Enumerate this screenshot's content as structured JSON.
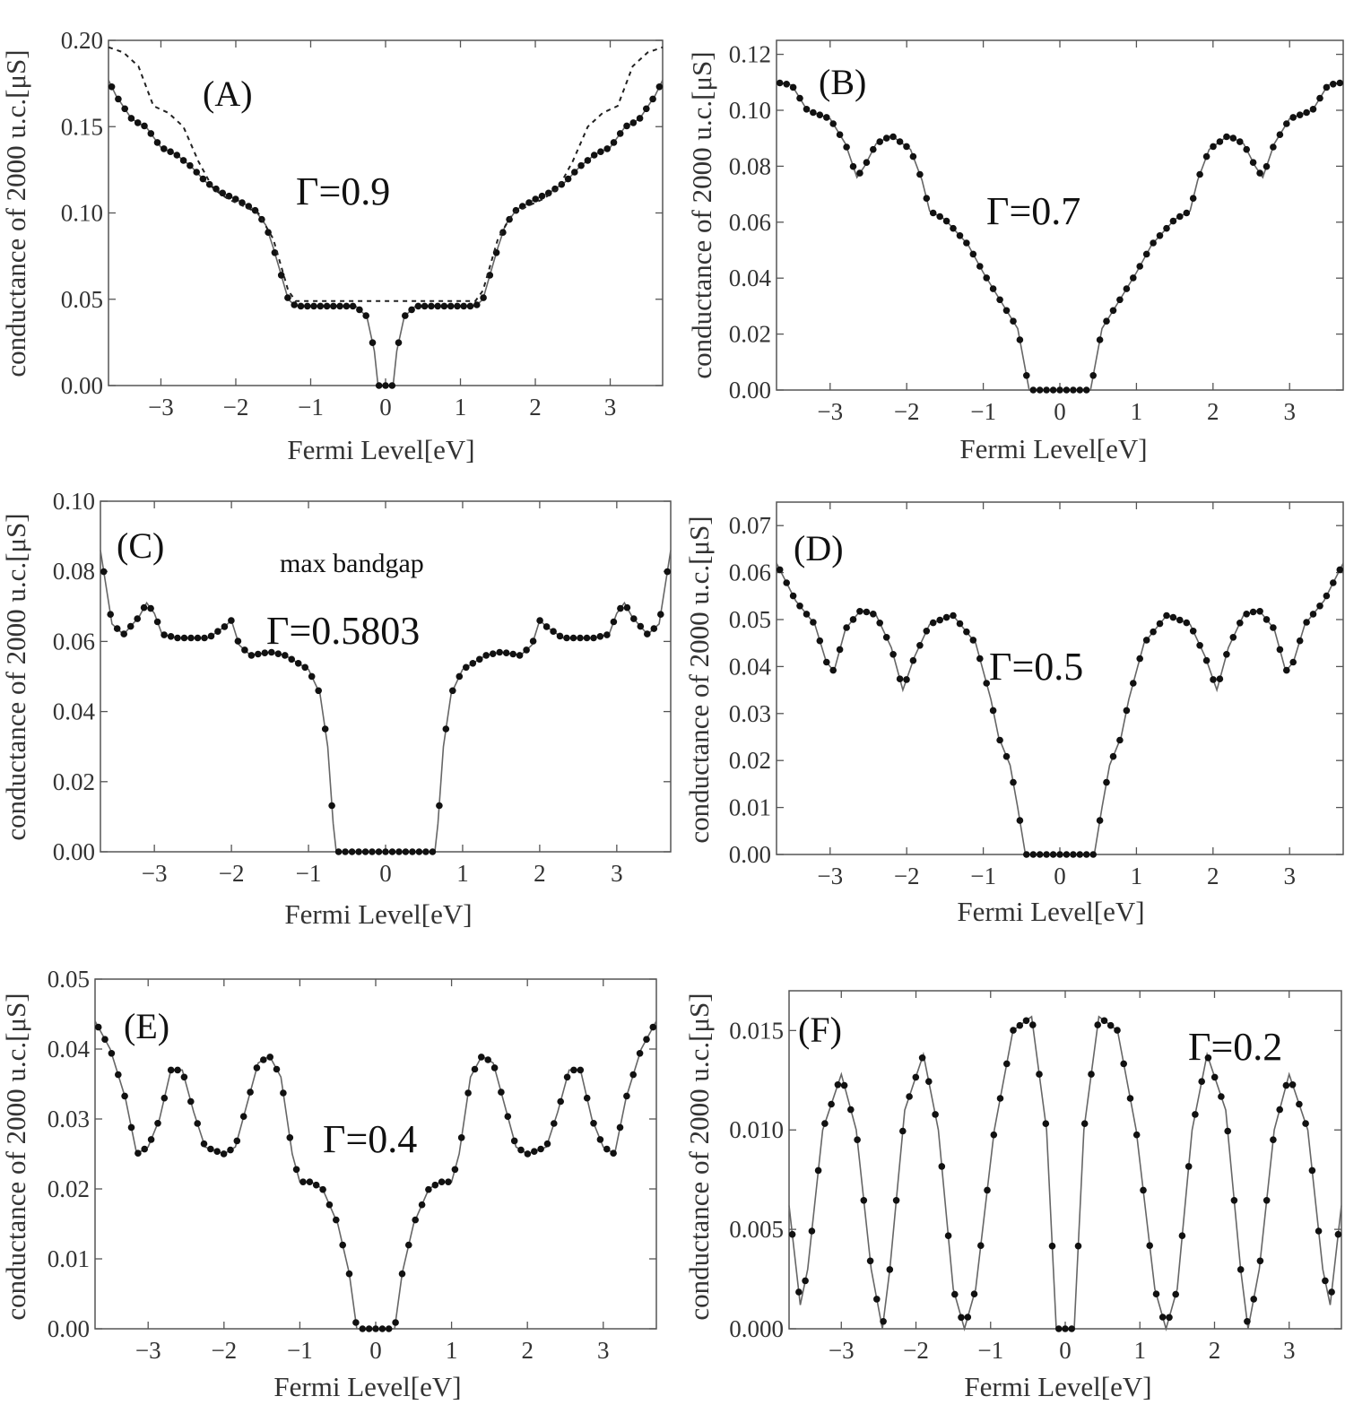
{
  "figure": {
    "x_axis_label": "Fermi Level[eV]",
    "y_axis_label": "conductance of 2000 u.c.[μS]"
  },
  "chart_data": [
    {
      "type": "scatter",
      "panel_label": "(A)",
      "annotations": [
        "Γ=0.9"
      ],
      "xlabel": "Fermi Level[eV]",
      "ylabel": "conductance of 2000 u.c.[μS]",
      "xlim": [
        -3.7,
        3.7
      ],
      "ylim": [
        0,
        0.2
      ],
      "xticks": [
        "−3",
        "−2",
        "−1",
        "0",
        "1",
        "2",
        "3"
      ],
      "yticks": [
        "0.00",
        "0.05",
        "0.10",
        "0.15",
        "0.20"
      ],
      "series": [
        {
          "style": "solid-line-with-dots",
          "x": [
            0,
            0.1,
            0.15,
            0.25,
            0.4,
            1.2,
            1.3,
            1.4,
            1.5,
            1.6,
            1.75,
            2.0,
            2.2,
            2.4,
            2.6,
            2.8,
            3.0,
            3.1,
            3.2,
            3.3,
            3.4,
            3.6,
            3.7
          ],
          "y": [
            0.0,
            0.0,
            0.02,
            0.04,
            0.046,
            0.046,
            0.05,
            0.065,
            0.08,
            0.093,
            0.102,
            0.108,
            0.112,
            0.118,
            0.127,
            0.134,
            0.138,
            0.144,
            0.15,
            0.152,
            0.155,
            0.168,
            0.177
          ]
        },
        {
          "style": "dashed",
          "x": [
            0,
            1.2,
            1.3,
            1.5,
            1.7,
            2.1,
            2.3,
            2.5,
            2.7,
            2.9,
            3.1,
            3.3,
            3.5,
            3.7
          ],
          "y": [
            0.049,
            0.049,
            0.055,
            0.085,
            0.1,
            0.108,
            0.114,
            0.13,
            0.15,
            0.158,
            0.162,
            0.185,
            0.193,
            0.196
          ]
        }
      ]
    },
    {
      "type": "scatter",
      "panel_label": "(B)",
      "annotations": [
        "Γ=0.7"
      ],
      "xlabel": "Fermi Level[eV]",
      "ylabel": "conductance of 2000 u.c.[μS]",
      "xlim": [
        -3.7,
        3.7
      ],
      "ylim": [
        0,
        0.125
      ],
      "xticks": [
        "−3",
        "−2",
        "−1",
        "0",
        "1",
        "2",
        "3"
      ],
      "yticks": [
        "0.00",
        "0.02",
        "0.04",
        "0.06",
        "0.08",
        "0.10",
        "0.12"
      ],
      "series": [
        {
          "style": "solid-line-with-dots",
          "x": [
            0,
            0.4,
            0.55,
            0.8,
            1.0,
            1.2,
            1.5,
            1.7,
            1.8,
            1.95,
            2.2,
            2.4,
            2.55,
            2.65,
            2.8,
            3.0,
            3.3,
            3.5,
            3.7
          ],
          "y": [
            0.0,
            0.0,
            0.022,
            0.033,
            0.042,
            0.052,
            0.061,
            0.064,
            0.075,
            0.086,
            0.091,
            0.088,
            0.08,
            0.076,
            0.088,
            0.097,
            0.1,
            0.109,
            0.11
          ]
        }
      ]
    },
    {
      "type": "scatter",
      "panel_label": "(C)",
      "annotations": [
        "max bandgap",
        "Γ=0.5803"
      ],
      "xlabel": "Fermi Level[eV]",
      "ylabel": "conductance of 2000 u.c.[μS]",
      "xlim": [
        -3.7,
        3.7
      ],
      "ylim": [
        0,
        0.1
      ],
      "xticks": [
        "−3",
        "−2",
        "−1",
        "0",
        "1",
        "2",
        "3"
      ],
      "yticks": [
        "0.00",
        "0.02",
        "0.04",
        "0.06",
        "0.08",
        "0.10"
      ],
      "series": [
        {
          "style": "solid-line-with-dots",
          "x": [
            0,
            0.64,
            0.68,
            0.75,
            0.85,
            1.0,
            1.3,
            1.5,
            1.75,
            1.9,
            2.0,
            2.1,
            2.3,
            2.7,
            2.9,
            3.0,
            3.1,
            3.2,
            3.4,
            3.55,
            3.7
          ],
          "y": [
            0.0,
            0.0,
            0.008,
            0.03,
            0.045,
            0.052,
            0.056,
            0.057,
            0.056,
            0.059,
            0.066,
            0.064,
            0.061,
            0.061,
            0.062,
            0.068,
            0.071,
            0.067,
            0.062,
            0.065,
            0.086
          ]
        }
      ]
    },
    {
      "type": "scatter",
      "panel_label": "(D)",
      "annotations": [
        "Γ=0.5"
      ],
      "xlabel": "Fermi Level[eV]",
      "ylabel": "conductance of 2000 u.c.[μS]",
      "xlim": [
        -3.7,
        3.7
      ],
      "ylim": [
        0,
        0.075
      ],
      "xticks": [
        "−3",
        "−2",
        "−1",
        "0",
        "1",
        "2",
        "3"
      ],
      "yticks": [
        "0.00",
        "0.01",
        "0.02",
        "0.03",
        "0.04",
        "0.05",
        "0.06",
        "0.07"
      ],
      "series": [
        {
          "style": "solid-line-with-dots",
          "x": [
            0,
            0.45,
            0.55,
            0.65,
            0.8,
            0.9,
            1.1,
            1.4,
            1.7,
            1.9,
            2.05,
            2.2,
            2.4,
            2.6,
            2.8,
            2.95,
            3.05,
            3.2,
            3.45,
            3.7
          ],
          "y": [
            0.0,
            0.0,
            0.01,
            0.019,
            0.025,
            0.033,
            0.045,
            0.051,
            0.049,
            0.042,
            0.035,
            0.044,
            0.051,
            0.052,
            0.048,
            0.039,
            0.041,
            0.049,
            0.054,
            0.062
          ]
        }
      ]
    },
    {
      "type": "scatter",
      "panel_label": "(E)",
      "annotations": [
        "Γ=0.4"
      ],
      "xlabel": "Fermi Level[eV]",
      "ylabel": "conductance of 2000 u.c.[μS]",
      "xlim": [
        -3.7,
        3.7
      ],
      "ylim": [
        0,
        0.05
      ],
      "xticks": [
        "−3",
        "−2",
        "−1",
        "0",
        "1",
        "2",
        "3"
      ],
      "yticks": [
        "0.00",
        "0.01",
        "0.02",
        "0.03",
        "0.04",
        "0.05"
      ],
      "series": [
        {
          "style": "solid-line-with-dots",
          "x": [
            0,
            0.25,
            0.35,
            0.5,
            0.7,
            0.85,
            1.0,
            1.1,
            1.25,
            1.4,
            1.55,
            1.75,
            1.85,
            2.0,
            2.25,
            2.4,
            2.55,
            2.7,
            2.85,
            3.0,
            3.15,
            3.3,
            3.5,
            3.7
          ],
          "y": [
            0.0,
            0.0,
            0.008,
            0.015,
            0.02,
            0.021,
            0.021,
            0.025,
            0.036,
            0.039,
            0.038,
            0.03,
            0.026,
            0.025,
            0.026,
            0.031,
            0.037,
            0.037,
            0.03,
            0.026,
            0.025,
            0.033,
            0.04,
            0.044
          ]
        }
      ]
    },
    {
      "type": "scatter",
      "panel_label": "(F)",
      "annotations": [
        "Γ=0.2"
      ],
      "xlabel": "Fermi Level[eV]",
      "ylabel": "conductance of 2000 u.c.[μS]",
      "xlim": [
        -3.7,
        3.7
      ],
      "ylim": [
        0,
        0.017
      ],
      "xticks": [
        "−3",
        "−2",
        "−1",
        "0",
        "1",
        "2",
        "3"
      ],
      "yticks": [
        "0.000",
        "0.005",
        "0.010",
        "0.015"
      ],
      "series": [
        {
          "style": "solid-line-with-dots",
          "x": [
            0,
            0.12,
            0.25,
            0.45,
            0.7,
            0.95,
            1.2,
            1.35,
            1.5,
            1.7,
            1.9,
            2.15,
            2.35,
            2.45,
            2.6,
            2.8,
            3.0,
            3.25,
            3.45,
            3.55,
            3.7
          ],
          "y": [
            0.0,
            0.0,
            0.01,
            0.0157,
            0.015,
            0.01,
            0.002,
            0.0,
            0.002,
            0.01,
            0.0138,
            0.011,
            0.003,
            0.0,
            0.003,
            0.01,
            0.0128,
            0.01,
            0.003,
            0.0012,
            0.0062
          ]
        }
      ]
    }
  ]
}
